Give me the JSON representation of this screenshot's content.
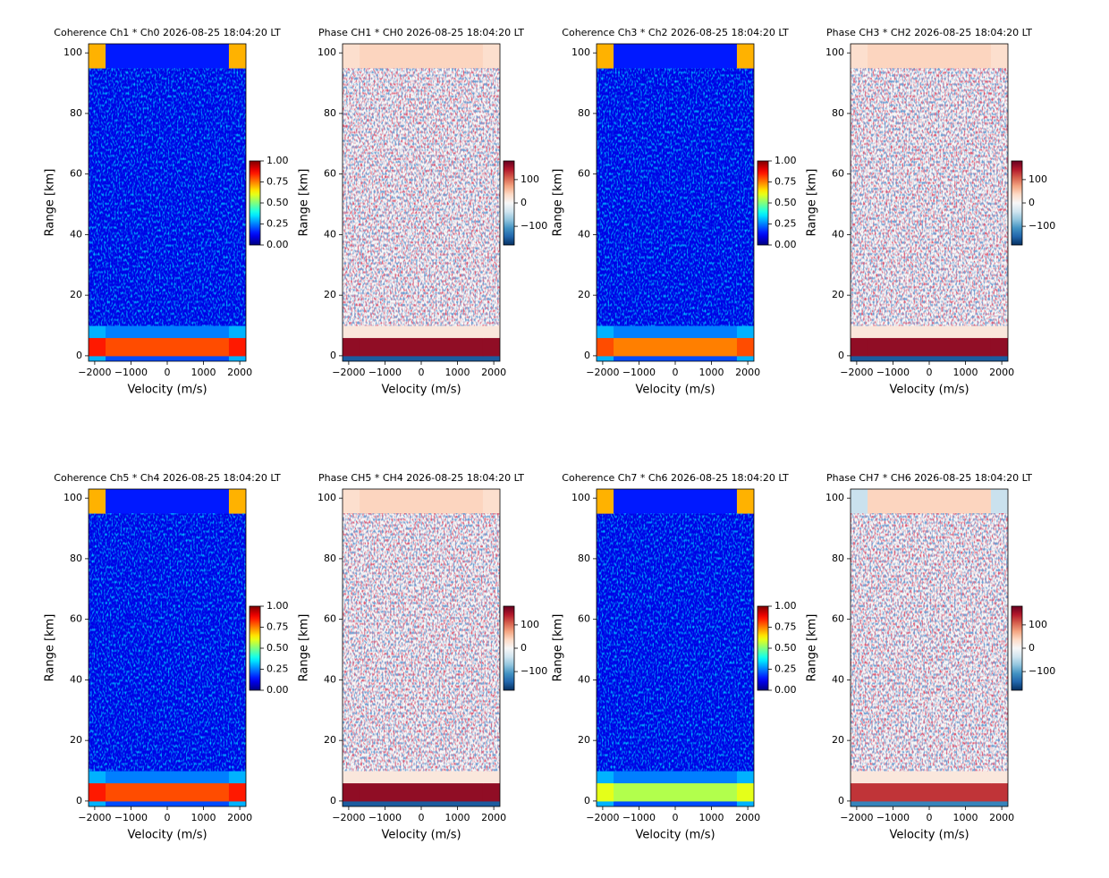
{
  "chart_data": [
    {
      "type": "heatmap",
      "title": "Coherence Ch1 * Ch0 2026-08-25 18:04:20 LT",
      "xlabel": "Velocity (m/s)",
      "ylabel": "Range [km]",
      "xlim": [
        -2170,
        2170
      ],
      "xticks": [
        {
          "value": -2000,
          "label": "−2000"
        },
        {
          "value": -1000,
          "label": "−1000"
        },
        0,
        1000,
        2000
      ],
      "ylim": [
        -1.8,
        103
      ],
      "yticks": [
        0,
        20,
        40,
        60,
        80,
        100
      ],
      "x_bins": [
        -2170,
        -1700,
        1700,
        2170
      ],
      "y_bins": [
        -1.8,
        0,
        6,
        10,
        95,
        103
      ],
      "values": [
        [
          0.3,
          0.2,
          0.3
        ],
        [
          0.85,
          0.8,
          0.85
        ],
        [
          0.3,
          0.25,
          0.3
        ],
        [
          0.1,
          0.1,
          0.1
        ],
        [
          0.7,
          0.15,
          0.7
        ]
      ],
      "colormap": "jet",
      "clim": [
        0,
        1
      ],
      "cticks": [
        {
          "value": 0,
          "label": "0.00"
        },
        {
          "value": 0.25,
          "label": "0.25"
        },
        {
          "value": 0.5,
          "label": "0.50"
        },
        {
          "value": 0.75,
          "label": "0.75"
        },
        {
          "value": 1,
          "label": "1.00"
        }
      ]
    },
    {
      "type": "heatmap",
      "title": "Phase CH1 * CH0 2026-08-25 18:04:20 LT",
      "xlabel": "Velocity (m/s)",
      "ylabel": "Range [km]",
      "xlim": [
        -2170,
        2170
      ],
      "xticks": [
        {
          "value": -2000,
          "label": "−2000"
        },
        {
          "value": -1000,
          "label": "−1000"
        },
        0,
        1000,
        2000
      ],
      "ylim": [
        -1.8,
        103
      ],
      "yticks": [
        0,
        20,
        40,
        60,
        80,
        100
      ],
      "x_bins": [
        -2170,
        -1700,
        1700,
        2170
      ],
      "y_bins": [
        -1.8,
        0,
        6,
        10,
        95,
        103
      ],
      "values": [
        [
          -150,
          -150,
          -150
        ],
        [
          160,
          160,
          160
        ],
        [
          20,
          20,
          20
        ],
        [
          0,
          0,
          0
        ],
        [
          30,
          40,
          30
        ]
      ],
      "colormap": "RdBu_r",
      "clim": [
        -180,
        180
      ],
      "cticks": [
        {
          "value": -100,
          "label": "−100"
        },
        0,
        100
      ]
    },
    {
      "type": "heatmap",
      "title": "Coherence Ch3 * Ch2 2026-08-25 18:04:20 LT",
      "xlabel": "Velocity (m/s)",
      "ylabel": "Range [km]",
      "xlim": [
        -2170,
        2170
      ],
      "xticks": [
        {
          "value": -2000,
          "label": "−2000"
        },
        {
          "value": -1000,
          "label": "−1000"
        },
        0,
        1000,
        2000
      ],
      "ylim": [
        -1.8,
        103
      ],
      "yticks": [
        0,
        20,
        40,
        60,
        80,
        100
      ],
      "x_bins": [
        -2170,
        -1700,
        1700,
        2170
      ],
      "y_bins": [
        -1.8,
        0,
        6,
        10,
        95,
        103
      ],
      "values": [
        [
          0.3,
          0.2,
          0.3
        ],
        [
          0.8,
          0.75,
          0.8
        ],
        [
          0.3,
          0.25,
          0.3
        ],
        [
          0.1,
          0.1,
          0.1
        ],
        [
          0.7,
          0.15,
          0.7
        ]
      ],
      "colormap": "jet",
      "clim": [
        0,
        1
      ],
      "cticks": [
        {
          "value": 0,
          "label": "0.00"
        },
        {
          "value": 0.25,
          "label": "0.25"
        },
        {
          "value": 0.5,
          "label": "0.50"
        },
        {
          "value": 0.75,
          "label": "0.75"
        },
        {
          "value": 1,
          "label": "1.00"
        }
      ]
    },
    {
      "type": "heatmap",
      "title": "Phase CH3 * CH2 2026-08-25 18:04:20 LT",
      "xlabel": "Velocity (m/s)",
      "ylabel": "Range [km]",
      "xlim": [
        -2170,
        2170
      ],
      "xticks": [
        {
          "value": -2000,
          "label": "−2000"
        },
        {
          "value": -1000,
          "label": "−1000"
        },
        0,
        1000,
        2000
      ],
      "ylim": [
        -1.8,
        103
      ],
      "yticks": [
        0,
        20,
        40,
        60,
        80,
        100
      ],
      "x_bins": [
        -2170,
        -1700,
        1700,
        2170
      ],
      "y_bins": [
        -1.8,
        0,
        6,
        10,
        95,
        103
      ],
      "values": [
        [
          -150,
          -150,
          -150
        ],
        [
          160,
          160,
          160
        ],
        [
          20,
          20,
          20
        ],
        [
          0,
          0,
          0
        ],
        [
          30,
          40,
          30
        ]
      ],
      "colormap": "RdBu_r",
      "clim": [
        -180,
        180
      ],
      "cticks": [
        {
          "value": -100,
          "label": "−100"
        },
        0,
        100
      ]
    },
    {
      "type": "heatmap",
      "title": "Coherence Ch5 * Ch4 2026-08-25 18:04:20 LT",
      "xlabel": "Velocity (m/s)",
      "ylabel": "Range [km]",
      "xlim": [
        -2170,
        2170
      ],
      "xticks": [
        {
          "value": -2000,
          "label": "−2000"
        },
        {
          "value": -1000,
          "label": "−1000"
        },
        0,
        1000,
        2000
      ],
      "ylim": [
        -1.8,
        103
      ],
      "yticks": [
        0,
        20,
        40,
        60,
        80,
        100
      ],
      "x_bins": [
        -2170,
        -1700,
        1700,
        2170
      ],
      "y_bins": [
        -1.8,
        0,
        6,
        10,
        95,
        103
      ],
      "values": [
        [
          0.3,
          0.2,
          0.3
        ],
        [
          0.85,
          0.8,
          0.85
        ],
        [
          0.3,
          0.25,
          0.3
        ],
        [
          0.1,
          0.1,
          0.1
        ],
        [
          0.7,
          0.15,
          0.7
        ]
      ],
      "colormap": "jet",
      "clim": [
        0,
        1
      ],
      "cticks": [
        {
          "value": 0,
          "label": "0.00"
        },
        {
          "value": 0.25,
          "label": "0.25"
        },
        {
          "value": 0.5,
          "label": "0.50"
        },
        {
          "value": 0.75,
          "label": "0.75"
        },
        {
          "value": 1,
          "label": "1.00"
        }
      ]
    },
    {
      "type": "heatmap",
      "title": "Phase CH5 * CH4 2026-08-25 18:04:20 LT",
      "xlabel": "Velocity (m/s)",
      "ylabel": "Range [km]",
      "xlim": [
        -2170,
        2170
      ],
      "xticks": [
        {
          "value": -2000,
          "label": "−2000"
        },
        {
          "value": -1000,
          "label": "−1000"
        },
        0,
        1000,
        2000
      ],
      "ylim": [
        -1.8,
        103
      ],
      "yticks": [
        0,
        20,
        40,
        60,
        80,
        100
      ],
      "x_bins": [
        -2170,
        -1700,
        1700,
        2170
      ],
      "y_bins": [
        -1.8,
        0,
        6,
        10,
        95,
        103
      ],
      "values": [
        [
          -150,
          -150,
          -150
        ],
        [
          160,
          160,
          160
        ],
        [
          20,
          20,
          20
        ],
        [
          0,
          0,
          0
        ],
        [
          30,
          40,
          30
        ]
      ],
      "colormap": "RdBu_r",
      "clim": [
        -180,
        180
      ],
      "cticks": [
        {
          "value": -100,
          "label": "−100"
        },
        0,
        100
      ]
    },
    {
      "type": "heatmap",
      "title": "Coherence Ch7 * Ch6 2026-08-25 18:04:20 LT",
      "xlabel": "Velocity (m/s)",
      "ylabel": "Range [km]",
      "xlim": [
        -2170,
        2170
      ],
      "xticks": [
        {
          "value": -2000,
          "label": "−2000"
        },
        {
          "value": -1000,
          "label": "−1000"
        },
        0,
        1000,
        2000
      ],
      "ylim": [
        -1.8,
        103
      ],
      "yticks": [
        0,
        20,
        40,
        60,
        80,
        100
      ],
      "x_bins": [
        -2170,
        -1700,
        1700,
        2170
      ],
      "y_bins": [
        -1.8,
        0,
        6,
        10,
        95,
        103
      ],
      "values": [
        [
          0.3,
          0.2,
          0.3
        ],
        [
          0.6,
          0.55,
          0.6
        ],
        [
          0.3,
          0.25,
          0.3
        ],
        [
          0.1,
          0.1,
          0.1
        ],
        [
          0.7,
          0.15,
          0.7
        ]
      ],
      "colormap": "jet",
      "clim": [
        0,
        1
      ],
      "cticks": [
        {
          "value": 0,
          "label": "0.00"
        },
        {
          "value": 0.25,
          "label": "0.25"
        },
        {
          "value": 0.5,
          "label": "0.50"
        },
        {
          "value": 0.75,
          "label": "0.75"
        },
        {
          "value": 1,
          "label": "1.00"
        }
      ]
    },
    {
      "type": "heatmap",
      "title": "Phase CH7 * CH6 2026-08-25 18:04:20 LT",
      "xlabel": "Velocity (m/s)",
      "ylabel": "Range [km]",
      "xlim": [
        -2170,
        2170
      ],
      "xticks": [
        {
          "value": -2000,
          "label": "−2000"
        },
        {
          "value": -1000,
          "label": "−1000"
        },
        0,
        1000,
        2000
      ],
      "ylim": [
        -1.8,
        103
      ],
      "yticks": [
        0,
        20,
        40,
        60,
        80,
        100
      ],
      "x_bins": [
        -2170,
        -1700,
        1700,
        2170
      ],
      "y_bins": [
        -1.8,
        0,
        6,
        10,
        95,
        103
      ],
      "values": [
        [
          -120,
          -120,
          -120
        ],
        [
          130,
          130,
          130
        ],
        [
          20,
          20,
          20
        ],
        [
          0,
          0,
          0
        ],
        [
          -40,
          40,
          -40
        ]
      ],
      "colormap": "RdBu_r",
      "clim": [
        -180,
        180
      ],
      "cticks": [
        {
          "value": -100,
          "label": "−100"
        },
        0,
        100
      ]
    }
  ]
}
